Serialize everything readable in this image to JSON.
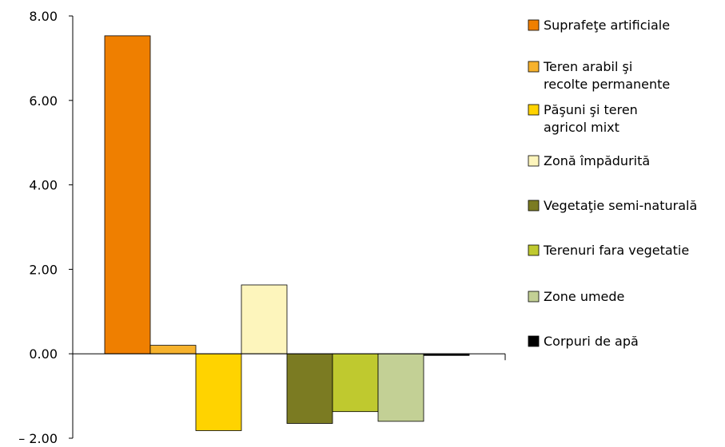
{
  "chart_data": {
    "type": "bar",
    "title": "",
    "xlabel": "",
    "ylabel": "",
    "ylim": [
      -2,
      8
    ],
    "yticks": [
      8,
      6,
      4,
      2,
      0,
      -2
    ],
    "ytick_labels": [
      "8.00",
      "6.00",
      "4.00",
      "2.00",
      "0.00",
      "– 2.00"
    ],
    "grid": false,
    "legend_position": "right",
    "series": [
      {
        "name": "Suprafeţe artificiale",
        "value": 7.53,
        "color": "#ef7f00",
        "legend_lines": [
          "Suprafeţe artificiale"
        ]
      },
      {
        "name": "Teren arabil şi recolte permanente",
        "value": 0.2,
        "color": "#f6b22d",
        "legend_lines": [
          "Teren arabil şi",
          "recolte permanente"
        ]
      },
      {
        "name": "Păşuni şi teren agricol mixt",
        "value": -1.82,
        "color": "#ffd300",
        "legend_lines": [
          "Păşuni şi teren",
          "agricol mixt"
        ]
      },
      {
        "name": "Zonă împădurită",
        "value": 1.63,
        "color": "#fdf5bc",
        "legend_lines": [
          "Zonă împădurită"
        ]
      },
      {
        "name": "Vegetaţie semi-naturală",
        "value": -1.65,
        "color": "#7b7b22",
        "legend_lines": [
          "Vegetaţie semi-naturală"
        ]
      },
      {
        "name": "Terenuri fara vegetatie",
        "value": -1.37,
        "color": "#bfc92f",
        "legend_lines": [
          "Terenuri fara vegetatie"
        ]
      },
      {
        "name": "Zone umede",
        "value": -1.6,
        "color": "#c3d095",
        "legend_lines": [
          "Zone umede"
        ]
      },
      {
        "name": "Corpuri de apă",
        "value": -0.04,
        "color": "#000000",
        "legend_lines": [
          "Corpuri de apă"
        ]
      }
    ]
  }
}
